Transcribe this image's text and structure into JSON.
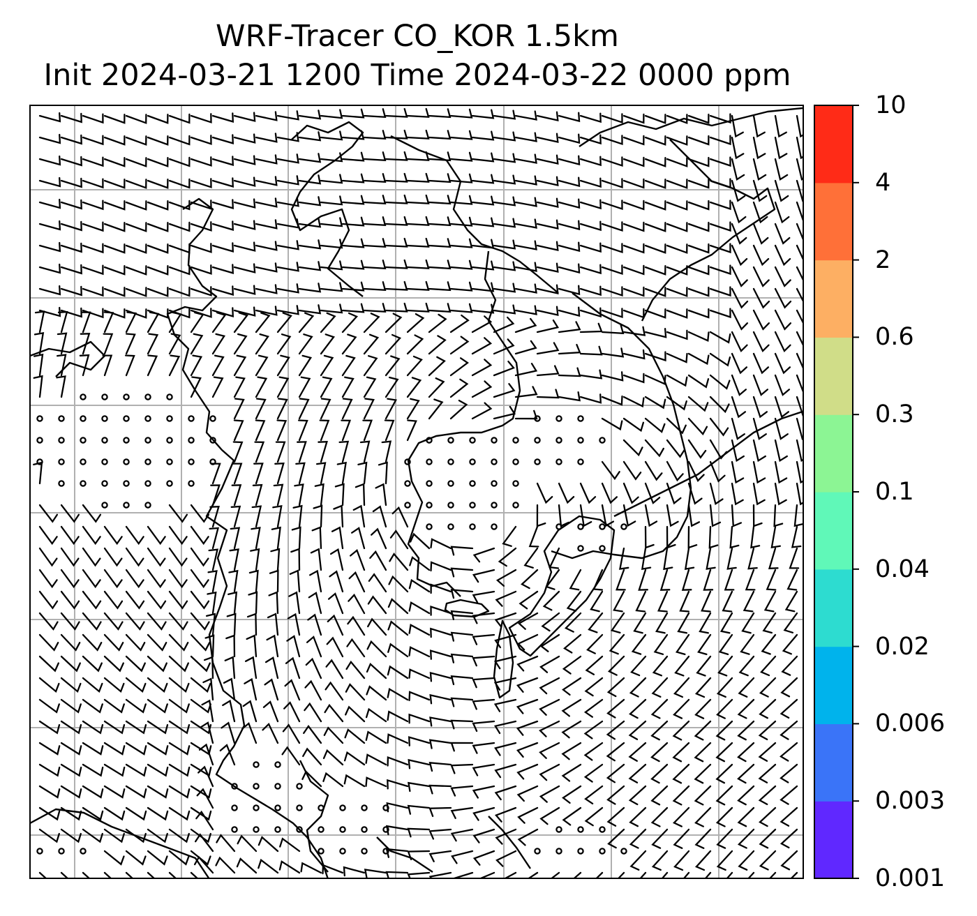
{
  "title": {
    "line1": "WRF-Tracer CO_KOR 1.5km",
    "line2": "Init 2024-03-21 1200 Time 2024-03-22 0000 ppm"
  },
  "colorbar": {
    "ticks": [
      "10",
      "4",
      "2",
      "0.6",
      "0.3",
      "0.1",
      "0.04",
      "0.02",
      "0.006",
      "0.003",
      "0.001"
    ],
    "colors_bottom_to_top": [
      "#6028ff",
      "#3a74f8",
      "#00b3ec",
      "#2ddcd0",
      "#60f8b8",
      "#8cf594",
      "#d0dd88",
      "#fdaf63",
      "#ff7038",
      "#ff2b17"
    ]
  },
  "map": {
    "gridlines": true,
    "symbols": "wind-barbs",
    "calm_symbol": "circle",
    "coastline_color": "#000000",
    "grid_color": "#b0b0b0"
  }
}
